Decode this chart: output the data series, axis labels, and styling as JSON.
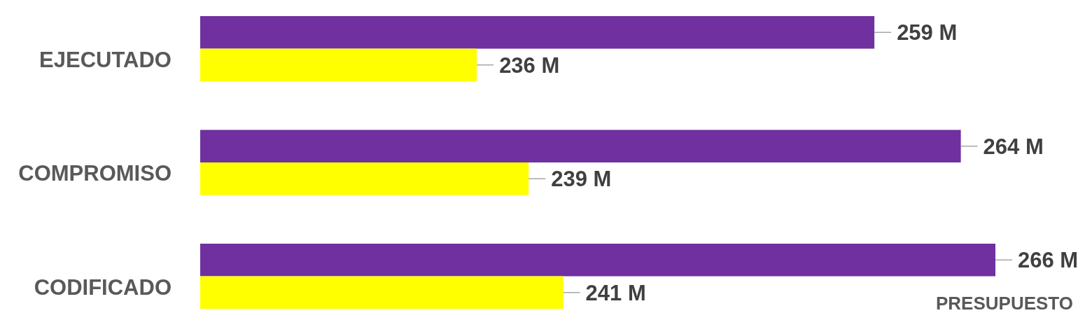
{
  "chart_data": {
    "type": "bar",
    "orientation": "horizontal",
    "xlabel": "PRESUPUESTO",
    "categories": [
      "EJECUTADO",
      "COMPROMISO",
      "CODIFICADO"
    ],
    "series": [
      {
        "color": "#7030a0",
        "values": [
          259,
          264,
          266
        ],
        "value_labels": [
          "259 M",
          "264 M",
          "266 M"
        ]
      },
      {
        "color": "#ffff00",
        "values": [
          236,
          239,
          241
        ],
        "value_labels": [
          "236 M",
          "239 M",
          "241 M"
        ]
      }
    ],
    "xlim": [
      220,
      266
    ],
    "tick_labels": "y"
  }
}
